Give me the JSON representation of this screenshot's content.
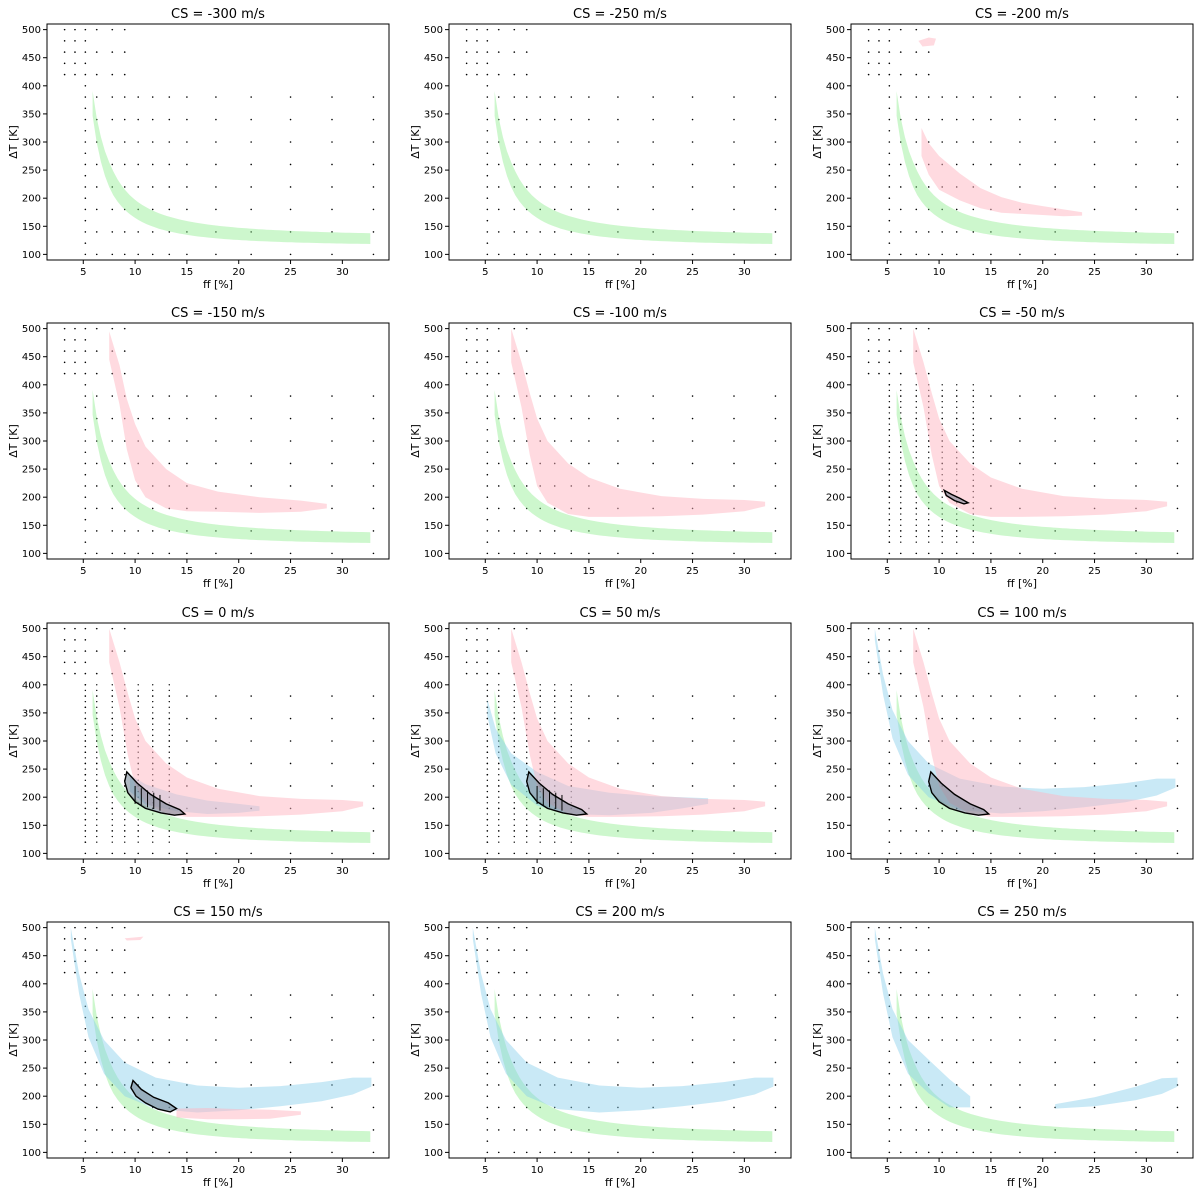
{
  "figure": {
    "layout": "4x3 grid of panels",
    "colors": {
      "green_band": "#90ee90",
      "red_band": "#ffb6c1",
      "blue_band": "#87ceeb",
      "overlap_contour_fill": "#708090",
      "contour_stroke": "#000000",
      "grid_dots": "#000000"
    },
    "shared_axes": {
      "xlabel": "ff [%]",
      "ylabel": "ΔT [K]",
      "xlim": [
        1.5,
        34.5
      ],
      "ylim": [
        90,
        510
      ],
      "xticks": [
        5,
        10,
        15,
        20,
        25,
        30
      ],
      "yticks": [
        100,
        150,
        200,
        250,
        300,
        350,
        400,
        450,
        500
      ],
      "grid": false
    }
  },
  "chart_data": [
    {
      "type": "area",
      "title": "CS = -300 m/s",
      "cs_value": -300,
      "bands": {
        "green": true,
        "red": false,
        "blue": false
      },
      "contour": null,
      "hatch": false,
      "dots_dense": false
    },
    {
      "type": "area",
      "title": "CS = -250 m/s",
      "cs_value": -250,
      "bands": {
        "green": true,
        "red": false,
        "blue": false
      },
      "contour": null,
      "hatch": false,
      "dots_dense": false
    },
    {
      "type": "area",
      "title": "CS = -200 m/s",
      "cs_value": -200,
      "bands": {
        "green": true,
        "red": "small",
        "blue": false
      },
      "contour": null,
      "hatch": false,
      "dots_dense": false
    },
    {
      "type": "area",
      "title": "CS = -150 m/s",
      "cs_value": -150,
      "bands": {
        "green": true,
        "red": "medium",
        "blue": false
      },
      "contour": null,
      "hatch": false,
      "dots_dense": false
    },
    {
      "type": "area",
      "title": "CS = -100 m/s",
      "cs_value": -100,
      "bands": {
        "green": true,
        "red": "large",
        "blue": false
      },
      "contour": null,
      "hatch": false,
      "dots_dense": false
    },
    {
      "type": "area",
      "title": "CS = -50 m/s",
      "cs_value": -50,
      "bands": {
        "green": true,
        "red": "large",
        "blue": false
      },
      "contour": "tiny",
      "hatch": false,
      "dots_dense": true
    },
    {
      "type": "area",
      "title": "CS = 0 m/s",
      "cs_value": 0,
      "bands": {
        "green": true,
        "red": "large",
        "blue": "short"
      },
      "contour": "large",
      "hatch": true,
      "dots_dense": true
    },
    {
      "type": "area",
      "title": "CS = 50 m/s",
      "cs_value": 50,
      "bands": {
        "green": true,
        "red": "large",
        "blue": "medium"
      },
      "contour": "large",
      "hatch": true,
      "dots_dense": true
    },
    {
      "type": "area",
      "title": "CS = 100 m/s",
      "cs_value": 100,
      "bands": {
        "green": true,
        "red": "large",
        "blue": "long"
      },
      "contour": "large",
      "hatch": false,
      "dots_dense": false
    },
    {
      "type": "area",
      "title": "CS = 150 m/s",
      "cs_value": 150,
      "bands": {
        "green": true,
        "red": "short",
        "blue": "long"
      },
      "contour": "medium",
      "hatch": false,
      "dots_dense": false
    },
    {
      "type": "area",
      "title": "CS = 200 m/s",
      "cs_value": 200,
      "bands": {
        "green": true,
        "red": false,
        "blue": "long"
      },
      "contour": null,
      "hatch": false,
      "dots_dense": false
    },
    {
      "type": "area",
      "title": "CS = 250 m/s",
      "cs_value": 250,
      "bands": {
        "green": true,
        "red": false,
        "blue": "split"
      },
      "contour": null,
      "hatch": false,
      "dots_dense": false
    }
  ]
}
